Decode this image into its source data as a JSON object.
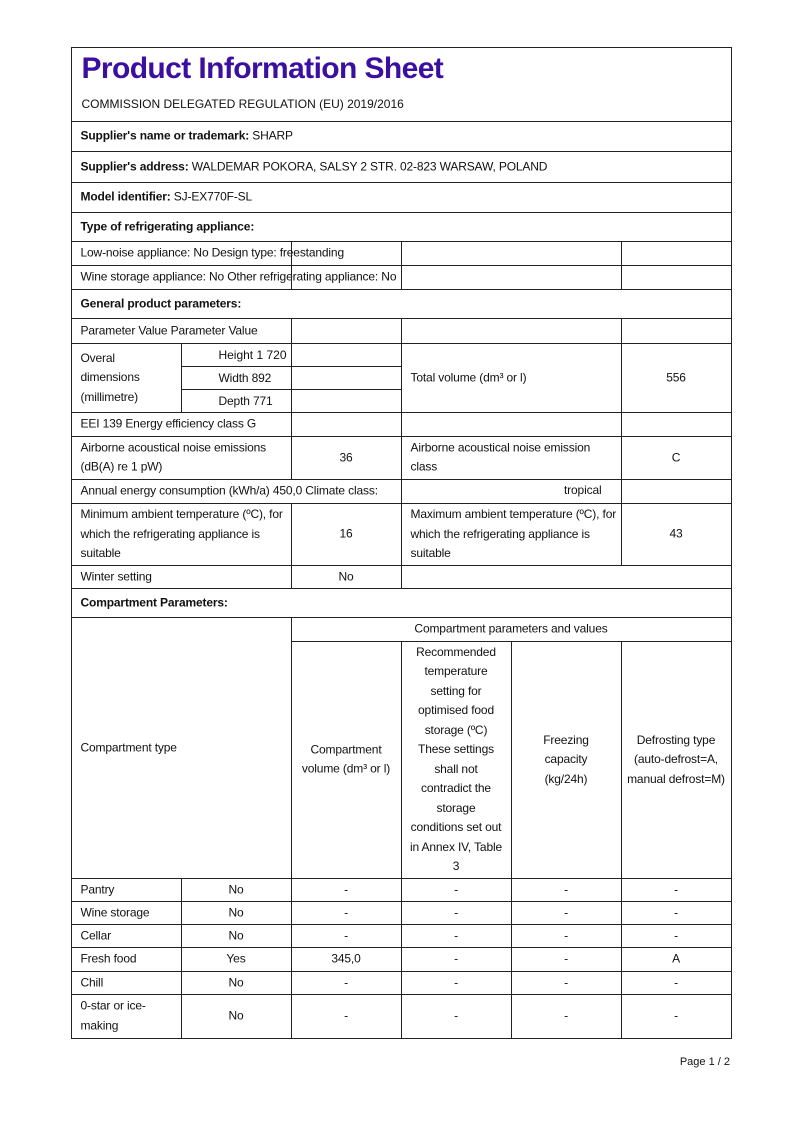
{
  "header": {
    "title": "Product Information Sheet",
    "regulation": "COMMISSION DELEGATED REGULATION (EU) 2019/2016"
  },
  "supplier_name": {
    "label": "Supplier's name or trademark:",
    "value": " SHARP"
  },
  "supplier_address": {
    "label": "Supplier's address:",
    "value": " WALDEMAR POKORA, SALSY 2 STR. 02-823 WARSAW, POLAND"
  },
  "model": {
    "label": "Model identifier:",
    "value": " SJ-EX770F-SL"
  },
  "type_heading": "Type of refrigerating appliance:",
  "type_rows": [
    "Low-noise appliance: No Design type: freestanding",
    "Wine storage appliance: No Other refrigerating appliance: No"
  ],
  "general_heading": "General product parameters:",
  "general": {
    "param_header": "Parameter Value Parameter Value",
    "dimensions_label": "Overal dimensions (millimetre)",
    "height": "Height 1 720",
    "width": "Width 892",
    "depth": "Depth 771",
    "total_volume_label": "Total volume (dm³ or l)",
    "total_volume": "556",
    "eei": "EEI 139 Energy efficiency class G",
    "noise_label": "Airborne acoustical noise emissions (dB(A) re 1 pW)",
    "noise": "36",
    "noise_class_label": "Airborne acoustical noise emission class",
    "noise_class": "C",
    "annual_energy": "Annual energy consumption (kWh/a) 450,0 Climate class:",
    "climate": "tropical",
    "min_temp_label": "Minimum ambient temperature (ºC), for which the refrigerating appliance is suitable",
    "min_temp": "16",
    "max_temp_label": "Maximum ambient temperature (ºC), for which the refrigerating appliance is suitable",
    "max_temp": "43",
    "winter_label": "Winter setting",
    "winter": "No"
  },
  "compartment_heading": "Compartment Parameters:",
  "compartment": {
    "group_header": "Compartment parameters and values",
    "type_header": "Compartment type",
    "volume_header": "Compartment volume (dm³ or l)",
    "temp_header": "Recommended temperature setting for optimised food storage (ºC) These settings shall not contradict the storage conditions set out in Annex IV, Table 3",
    "freezing_header": "Freezing capacity (kg/24h)",
    "defrost_header": "Defrosting type (auto-defrost=A, manual defrost=M)",
    "rows": [
      [
        "Pantry",
        "No",
        "-",
        "-",
        "-",
        "-"
      ],
      [
        "Wine storage",
        "No",
        "-",
        "-",
        "-",
        "-"
      ],
      [
        "Cellar",
        "No",
        "-",
        "-",
        "-",
        "-"
      ],
      [
        "Fresh food",
        "Yes",
        "345,0",
        "-",
        "-",
        "A"
      ],
      [
        "Chill",
        "No",
        "-",
        "-",
        "-",
        "-"
      ],
      [
        "0-star or ice-making",
        "No",
        "-",
        "-",
        "-",
        "-"
      ]
    ]
  },
  "footer": {
    "page": "Page 1 / 2"
  }
}
